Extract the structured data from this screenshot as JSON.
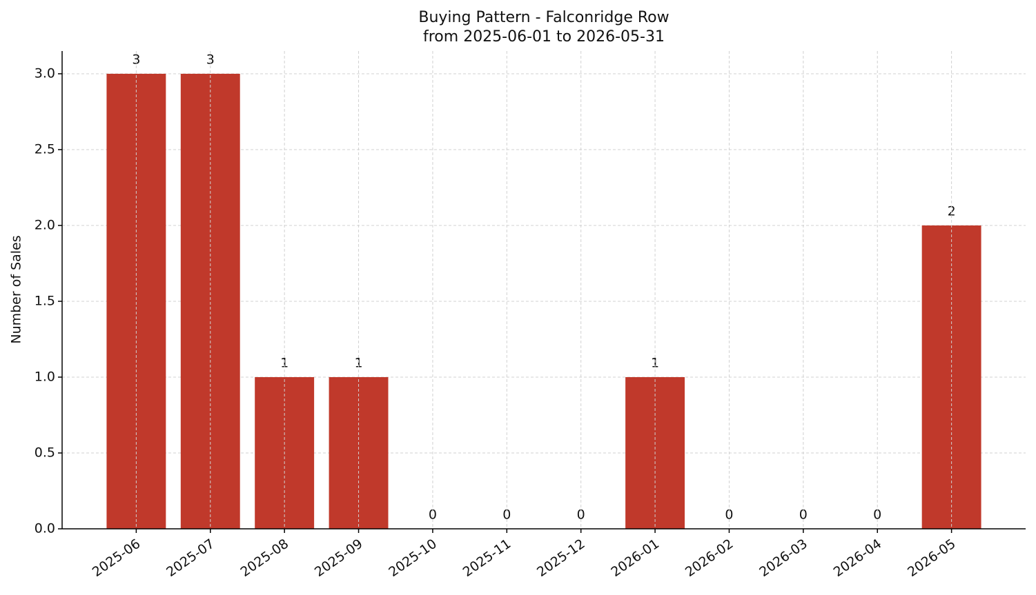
{
  "chart_data": {
    "type": "bar",
    "title": "Buying Pattern - Falconridge Row",
    "subtitle": "from 2025-06-01 to 2026-05-31",
    "y_label": "Number of Sales",
    "categories": [
      "2025-06",
      "2025-07",
      "2025-08",
      "2025-09",
      "2025-10",
      "2025-11",
      "2025-12",
      "2026-01",
      "2026-02",
      "2026-03",
      "2026-04",
      "2026-05"
    ],
    "values": [
      3,
      3,
      1,
      1,
      0,
      0,
      0,
      1,
      0,
      0,
      0,
      2
    ],
    "color": "#c0392b",
    "ylim": [
      0,
      3.15
    ],
    "yticks": [
      {
        "value": 0,
        "label": "0.0"
      },
      {
        "value": 0.5,
        "label": "0.5"
      },
      {
        "value": 1,
        "label": "1.0"
      },
      {
        "value": 1.5,
        "label": "1.5"
      },
      {
        "value": 2,
        "label": "2.0"
      },
      {
        "value": 2.5,
        "label": "2.5"
      },
      {
        "value": 3,
        "label": "3.0"
      }
    ],
    "grid": true
  }
}
